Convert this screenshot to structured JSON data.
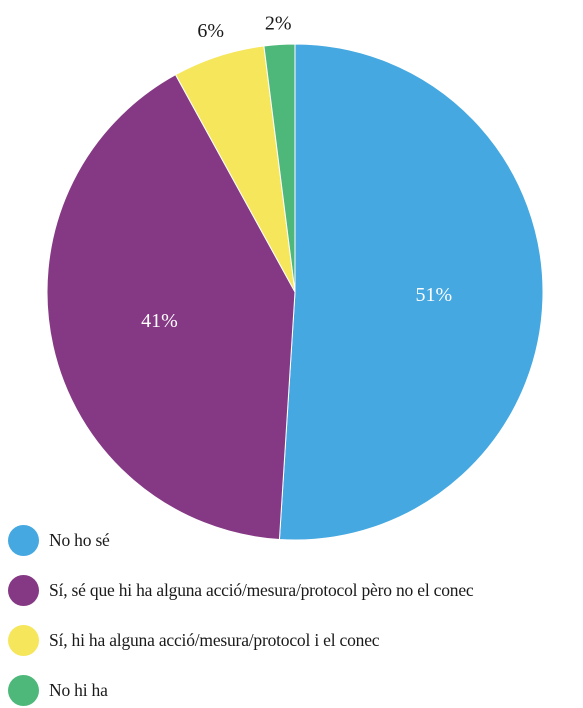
{
  "chart_data": {
    "type": "pie",
    "categories": [
      "No ho sé",
      "Sí, sé que hi ha alguna acció/mesura/protocol pèro no el conec",
      "Sí, hi ha alguna acció/mesura/protocol i el conec",
      "No hi ha"
    ],
    "values": [
      51,
      41,
      6,
      2
    ],
    "labels": [
      "51%",
      "41%",
      "6%",
      "2%"
    ],
    "colors": [
      "#45a8e0",
      "#853984",
      "#f5e65c",
      "#4db87a"
    ],
    "start": "12 o'clock",
    "direction": "clockwise",
    "legend_position": "bottom-left"
  }
}
